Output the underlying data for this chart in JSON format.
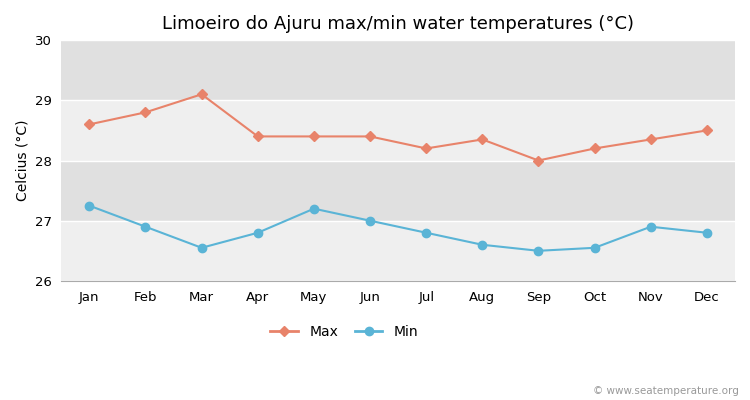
{
  "title": "Limoeiro do Ajuru max/min water temperatures (°C)",
  "ylabel": "Celcius (°C)",
  "months": [
    "Jan",
    "Feb",
    "Mar",
    "Apr",
    "May",
    "Jun",
    "Jul",
    "Aug",
    "Sep",
    "Oct",
    "Nov",
    "Dec"
  ],
  "max_temps": [
    28.6,
    28.8,
    29.1,
    28.4,
    28.4,
    28.4,
    28.2,
    28.35,
    28.0,
    28.2,
    28.35,
    28.5
  ],
  "min_temps": [
    27.25,
    26.9,
    26.55,
    26.8,
    27.2,
    27.0,
    26.8,
    26.6,
    26.5,
    26.55,
    26.9,
    26.8
  ],
  "max_color": "#e8836a",
  "min_color": "#5ab4d6",
  "fig_bg_color": "#ffffff",
  "plot_bg_color": "#e8e8e8",
  "band_color_light": "#efefef",
  "band_color_dark": "#e0e0e0",
  "grid_line_color": "#ffffff",
  "ylim": [
    26,
    30
  ],
  "yticks": [
    26,
    27,
    28,
    29,
    30
  ],
  "watermark": "© www.seatemperature.org",
  "title_fontsize": 13,
  "label_fontsize": 10,
  "tick_fontsize": 9.5,
  "watermark_fontsize": 7.5,
  "legend_fontsize": 10
}
